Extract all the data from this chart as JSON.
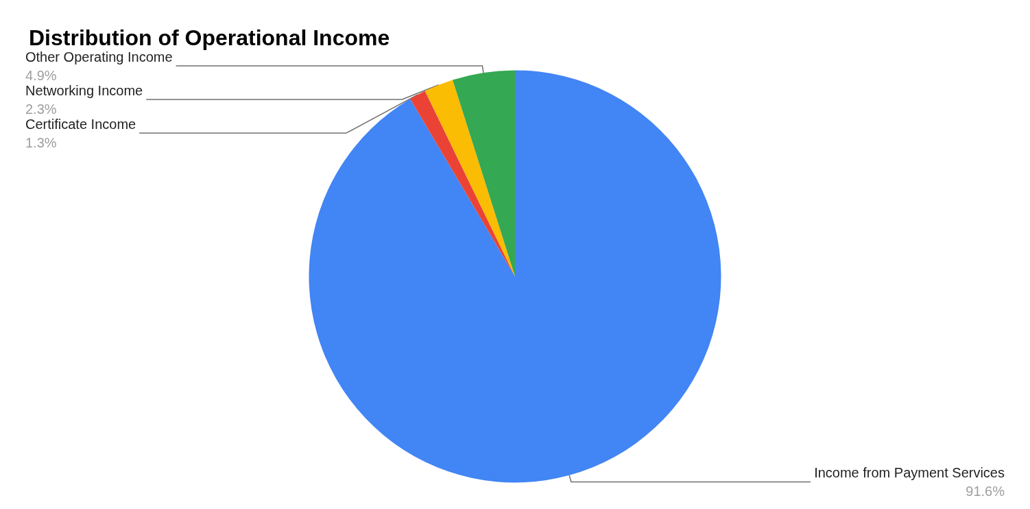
{
  "chart_data": {
    "type": "pie",
    "title": "Distribution of Operational Income",
    "categories": [
      "Income from Payment Services",
      "Certificate Income",
      "Networking Income",
      "Other Operating Income"
    ],
    "values": [
      91.6,
      1.3,
      2.3,
      4.9
    ],
    "value_labels": [
      "91.6%",
      "1.3%",
      "2.3%",
      "4.9%"
    ],
    "colors": [
      "#4285f4",
      "#ea4335",
      "#fbbc04",
      "#34a853"
    ],
    "legend": false
  }
}
